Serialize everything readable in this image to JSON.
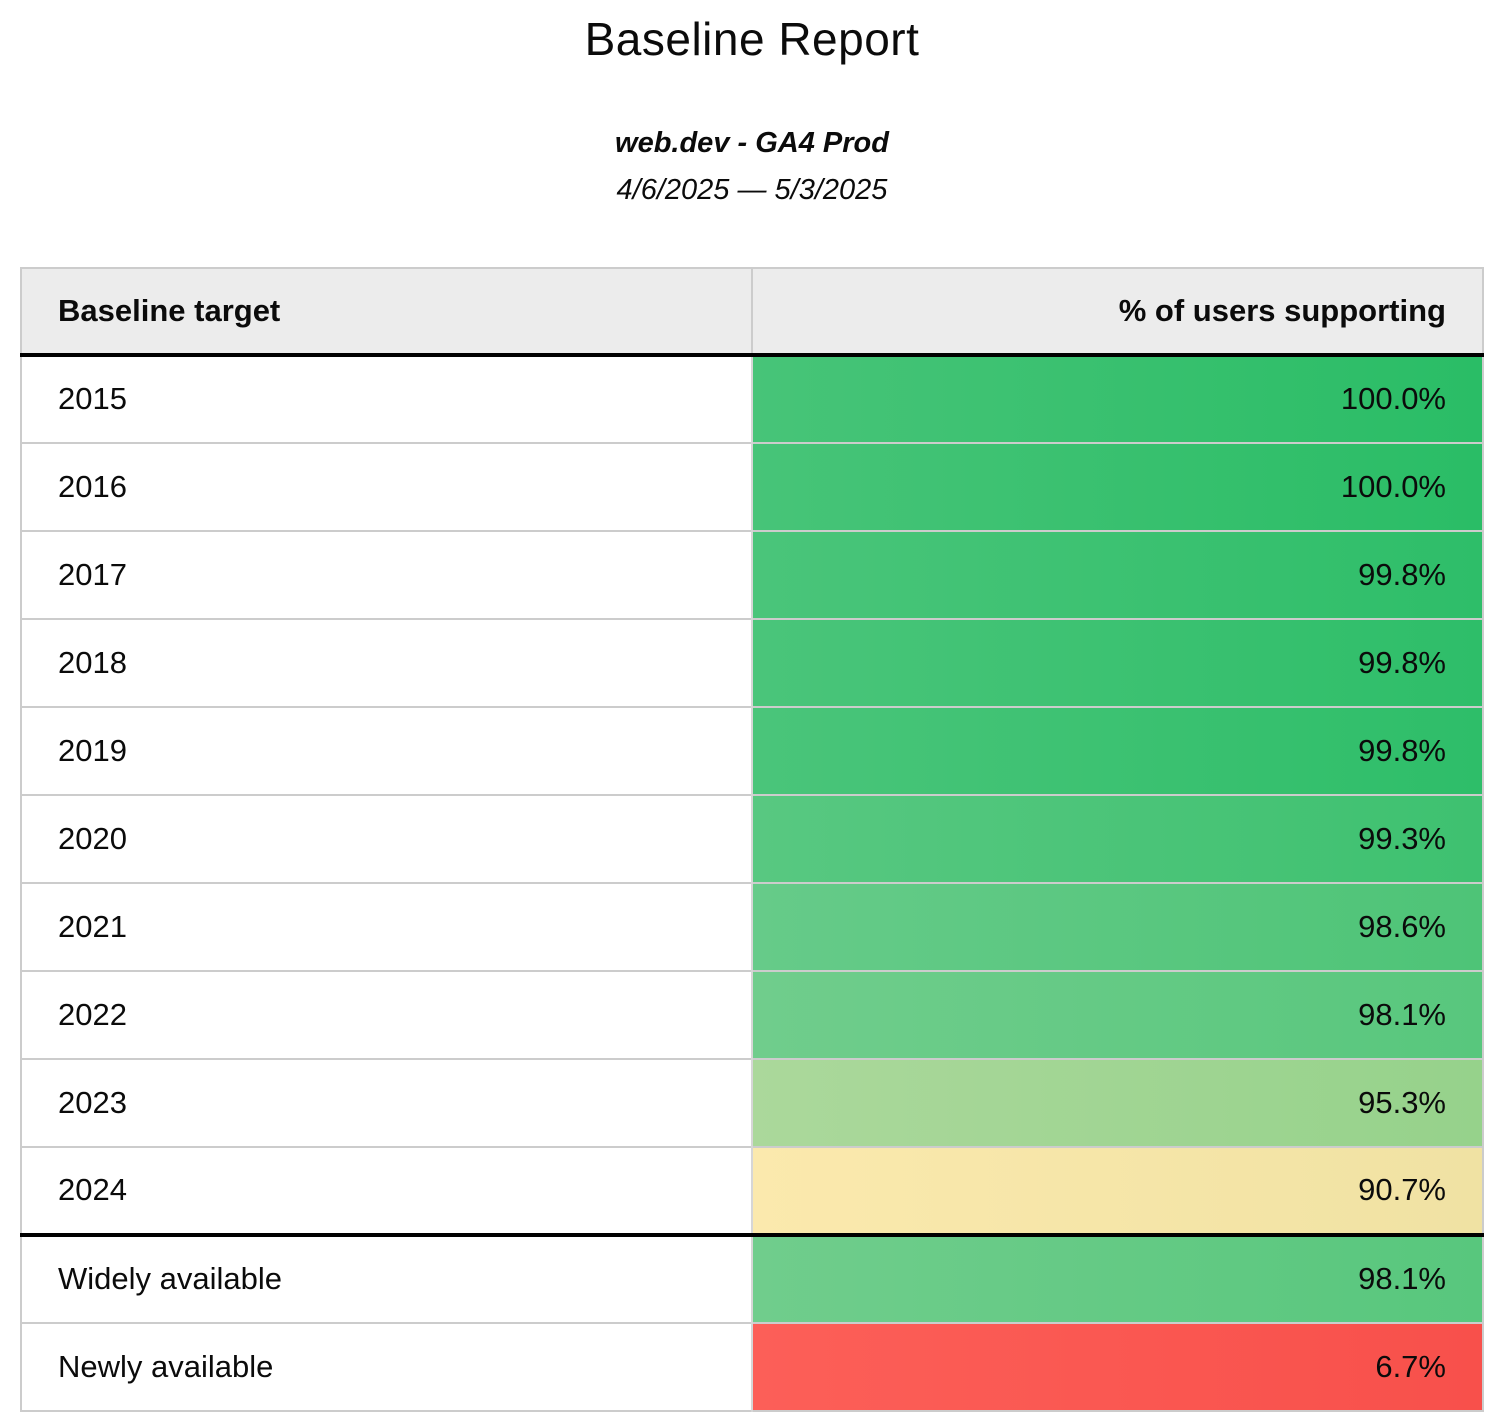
{
  "report": {
    "title": "Baseline Report",
    "property": "web.dev - GA4 Prod",
    "date_range": "4/6/2025 — 5/3/2025"
  },
  "table": {
    "columns": {
      "target": "Baseline target",
      "value": "% of users supporting"
    },
    "rows": [
      {
        "target": "2015",
        "value": "100.0%",
        "group": "year",
        "bg_left": "#47c478",
        "bg_right": "#2abd66"
      },
      {
        "target": "2016",
        "value": "100.0%",
        "group": "year",
        "bg_left": "#47c478",
        "bg_right": "#2abd66"
      },
      {
        "target": "2017",
        "value": "99.8%",
        "group": "year",
        "bg_left": "#4ac57a",
        "bg_right": "#2ebe69"
      },
      {
        "target": "2018",
        "value": "99.8%",
        "group": "year",
        "bg_left": "#4ac57a",
        "bg_right": "#2ebe69"
      },
      {
        "target": "2019",
        "value": "99.8%",
        "group": "year",
        "bg_left": "#4ac57a",
        "bg_right": "#2ebe69"
      },
      {
        "target": "2020",
        "value": "99.3%",
        "group": "year",
        "bg_left": "#58c881",
        "bg_right": "#3ec170"
      },
      {
        "target": "2021",
        "value": "98.6%",
        "group": "year",
        "bg_left": "#66cb89",
        "bg_right": "#4ec477"
      },
      {
        "target": "2022",
        "value": "98.1%",
        "group": "year",
        "bg_left": "#70cd8c",
        "bg_right": "#58c77d"
      },
      {
        "target": "2023",
        "value": "95.3%",
        "group": "year",
        "bg_left": "#abd89b",
        "bg_right": "#96d28b"
      },
      {
        "target": "2024",
        "value": "90.7%",
        "group": "year",
        "bg_left": "#fbe9ad",
        "bg_right": "#f0e2a3"
      },
      {
        "target": "Widely available",
        "value": "98.1%",
        "group": "baseline",
        "bg_left": "#70cd8c",
        "bg_right": "#58c77d"
      },
      {
        "target": "Newly available",
        "value": "6.7%",
        "group": "baseline",
        "bg_left": "#fc5f58",
        "bg_right": "#f8504b"
      }
    ]
  },
  "colors": {
    "header_bg": "#ececec",
    "row_separator": "#cccccc",
    "group_divider": "#000000",
    "green_full": "#2abd66",
    "yellow_warn": "#f5e6a8",
    "red_low": "#fa5650"
  },
  "chart_data": {
    "type": "table",
    "title": "Baseline Report",
    "subtitle": "web.dev - GA4 Prod",
    "date_range": "4/6/2025 — 5/3/2025",
    "columns": [
      "Baseline target",
      "% of users supporting"
    ],
    "categories": [
      "2015",
      "2016",
      "2017",
      "2018",
      "2019",
      "2020",
      "2021",
      "2022",
      "2023",
      "2024",
      "Widely available",
      "Newly available"
    ],
    "values": [
      100.0,
      100.0,
      99.8,
      99.8,
      99.8,
      99.3,
      98.6,
      98.1,
      95.3,
      90.7,
      98.1,
      6.7
    ],
    "value_unit": "%",
    "color_scale": "green (high) through yellow to red (low), conditional formatting on value column"
  }
}
